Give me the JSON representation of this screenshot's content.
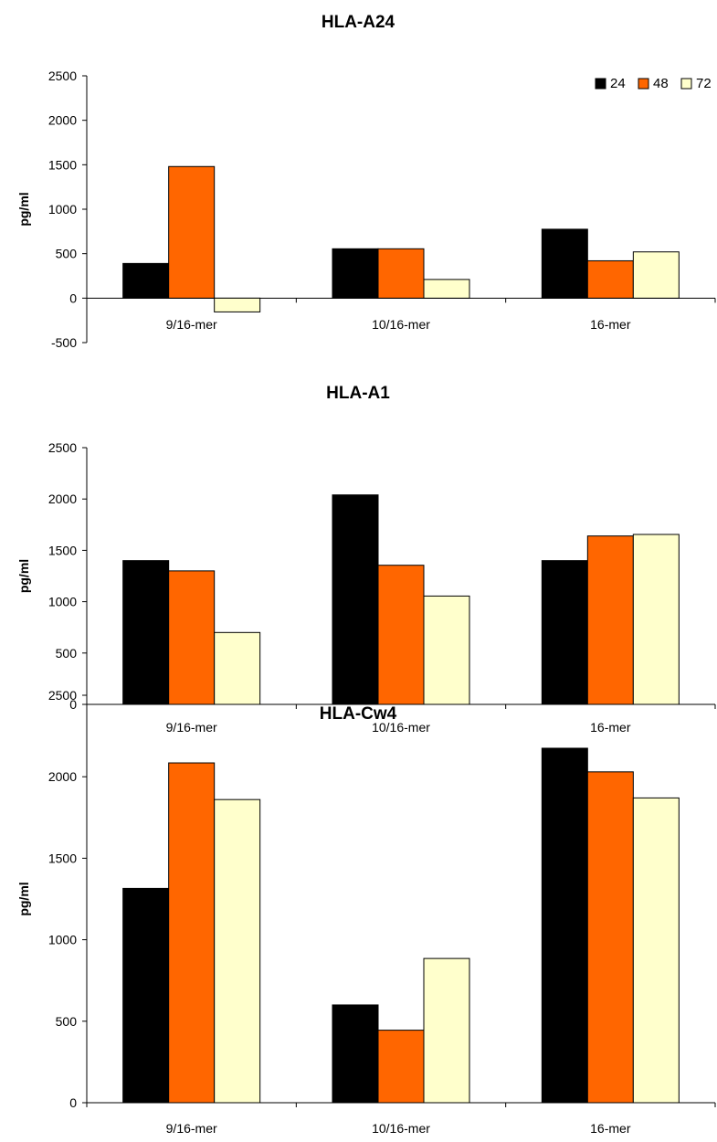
{
  "colors": {
    "series_24": "#000000",
    "series_48": "#ff6600",
    "series_72": "#ffffcc",
    "axis": "#000000"
  },
  "chart_data": [
    {
      "type": "bar",
      "title": "HLA-A24",
      "ylabel": "pg/ml",
      "xlabel": "",
      "categories": [
        "9/16-mer",
        "10/16-mer",
        "16-mer"
      ],
      "ylim": [
        -500,
        2500
      ],
      "yticks": [
        -500,
        0,
        500,
        1000,
        1500,
        2000,
        2500
      ],
      "legend": "top-right",
      "grid": false,
      "series": [
        {
          "name": "24",
          "values": [
            390,
            555,
            775
          ]
        },
        {
          "name": "48",
          "values": [
            1480,
            555,
            420
          ]
        },
        {
          "name": "72",
          "values": [
            -155,
            210,
            520
          ]
        }
      ]
    },
    {
      "type": "bar",
      "title": "HLA-A1",
      "ylabel": "pg/ml",
      "xlabel": "",
      "categories": [
        "9/16-mer",
        "10/16-mer",
        "16-mer"
      ],
      "ylim": [
        0,
        2500
      ],
      "yticks": [
        0,
        500,
        1000,
        1500,
        2000,
        2500
      ],
      "grid": false,
      "series": [
        {
          "name": "24",
          "values": [
            1400,
            2040,
            1400
          ]
        },
        {
          "name": "48",
          "values": [
            1300,
            1355,
            1640
          ]
        },
        {
          "name": "72",
          "values": [
            700,
            1055,
            1655
          ]
        }
      ]
    },
    {
      "type": "bar",
      "title": "HLA-Cw4",
      "ylabel": "pg/ml",
      "xlabel": "",
      "categories": [
        "9/16-mer",
        "10/16-mer",
        "16-mer"
      ],
      "ylim": [
        0,
        2500
      ],
      "yticks": [
        0,
        500,
        1000,
        1500,
        2000,
        2500
      ],
      "grid": false,
      "series": [
        {
          "name": "24",
          "values": [
            1315,
            600,
            2175
          ]
        },
        {
          "name": "48",
          "values": [
            2085,
            445,
            2030
          ]
        },
        {
          "name": "72",
          "values": [
            1860,
            885,
            1870
          ]
        }
      ]
    }
  ]
}
